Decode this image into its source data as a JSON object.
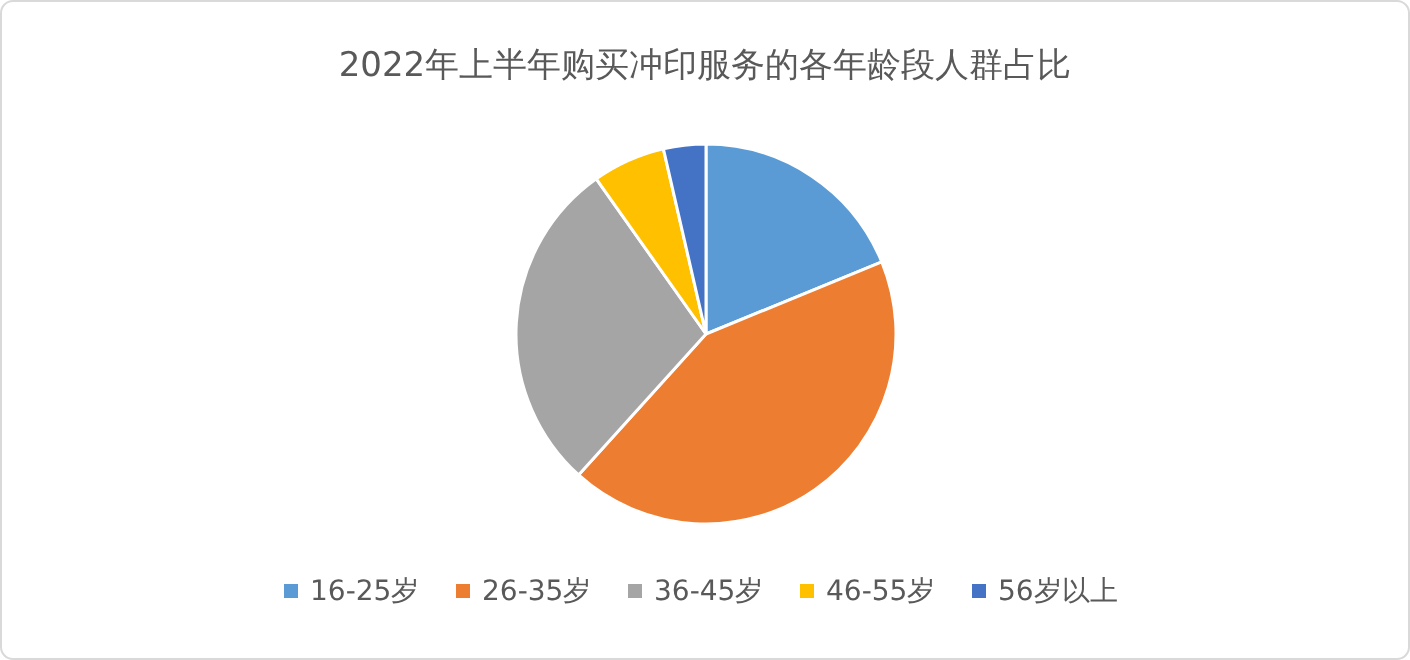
{
  "chart_data": {
    "type": "pie",
    "title": "2022年上半年购买冲印服务的各年龄段人群占比",
    "categories": [
      "16-25岁",
      "26-35岁",
      "36-45岁",
      "46-55岁",
      "56岁以上"
    ],
    "values": [
      18.8,
      42.9,
      28.5,
      6.2,
      3.6
    ],
    "colors": [
      "#5b9bd5",
      "#ed7d31",
      "#a5a5a5",
      "#ffc000",
      "#4472c4"
    ],
    "legend": "bottom"
  }
}
